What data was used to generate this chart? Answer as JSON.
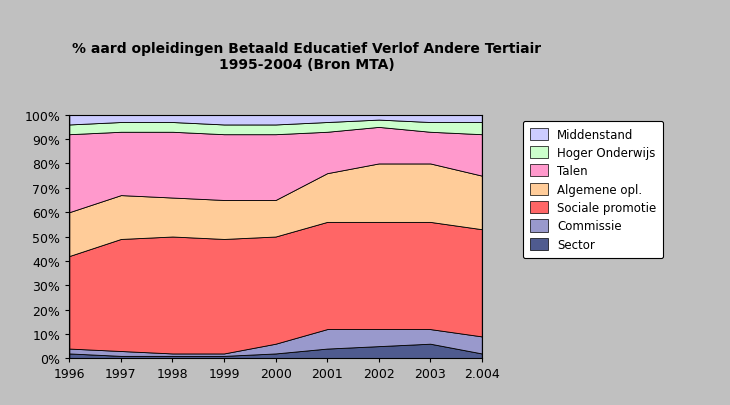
{
  "title": "% aard opleidingen Betaald Educatief Verlof Andere Tertiair\n1995-2004 (Bron MTA)",
  "years": [
    1996,
    1997,
    1998,
    1999,
    2000,
    2001,
    2002,
    2003,
    2004
  ],
  "series": {
    "Sector": [
      0.02,
      0.01,
      0.01,
      0.01,
      0.02,
      0.04,
      0.05,
      0.06,
      0.02
    ],
    "Commissie": [
      0.02,
      0.02,
      0.01,
      0.01,
      0.04,
      0.08,
      0.07,
      0.06,
      0.07
    ],
    "Sociale promotie": [
      0.38,
      0.46,
      0.48,
      0.47,
      0.44,
      0.44,
      0.44,
      0.44,
      0.44
    ],
    "Algemene opl.": [
      0.18,
      0.18,
      0.16,
      0.16,
      0.15,
      0.2,
      0.24,
      0.24,
      0.22
    ],
    "Talen": [
      0.32,
      0.26,
      0.27,
      0.27,
      0.27,
      0.17,
      0.15,
      0.13,
      0.17
    ],
    "Hoger Onderwijs": [
      0.04,
      0.04,
      0.04,
      0.04,
      0.04,
      0.04,
      0.03,
      0.04,
      0.05
    ],
    "Middenstand": [
      0.04,
      0.03,
      0.03,
      0.04,
      0.04,
      0.03,
      0.02,
      0.03,
      0.03
    ]
  },
  "colors": {
    "Sector": "#4f5b8f",
    "Commissie": "#9999cc",
    "Sociale promotie": "#ff6666",
    "Algemene opl.": "#ffcc99",
    "Talen": "#ff99cc",
    "Hoger Onderwijs": "#ccffcc",
    "Middenstand": "#ccccff"
  },
  "stack_order": [
    "Sector",
    "Commissie",
    "Sociale promotie",
    "Algemene opl.",
    "Talen",
    "Hoger Onderwijs",
    "Middenstand"
  ],
  "legend_order": [
    "Middenstand",
    "Hoger Onderwijs",
    "Talen",
    "Algemene opl.",
    "Sociale promotie",
    "Commissie",
    "Sector"
  ],
  "background_color": "#c0c0c0",
  "plot_bg_color": "#ffffff",
  "ylim": [
    0,
    1.0
  ],
  "yticks": [
    0.0,
    0.1,
    0.2,
    0.3,
    0.4,
    0.5,
    0.6,
    0.7,
    0.8,
    0.9,
    1.0
  ],
  "ytick_labels": [
    "0%",
    "10%",
    "20%",
    "30%",
    "40%",
    "50%",
    "60%",
    "70%",
    "80%",
    "90%",
    "100%"
  ],
  "depth_color_top": "#b8b8d0",
  "depth_color_right": "#a8a8c0",
  "depth_color_corner": "#9898b0"
}
